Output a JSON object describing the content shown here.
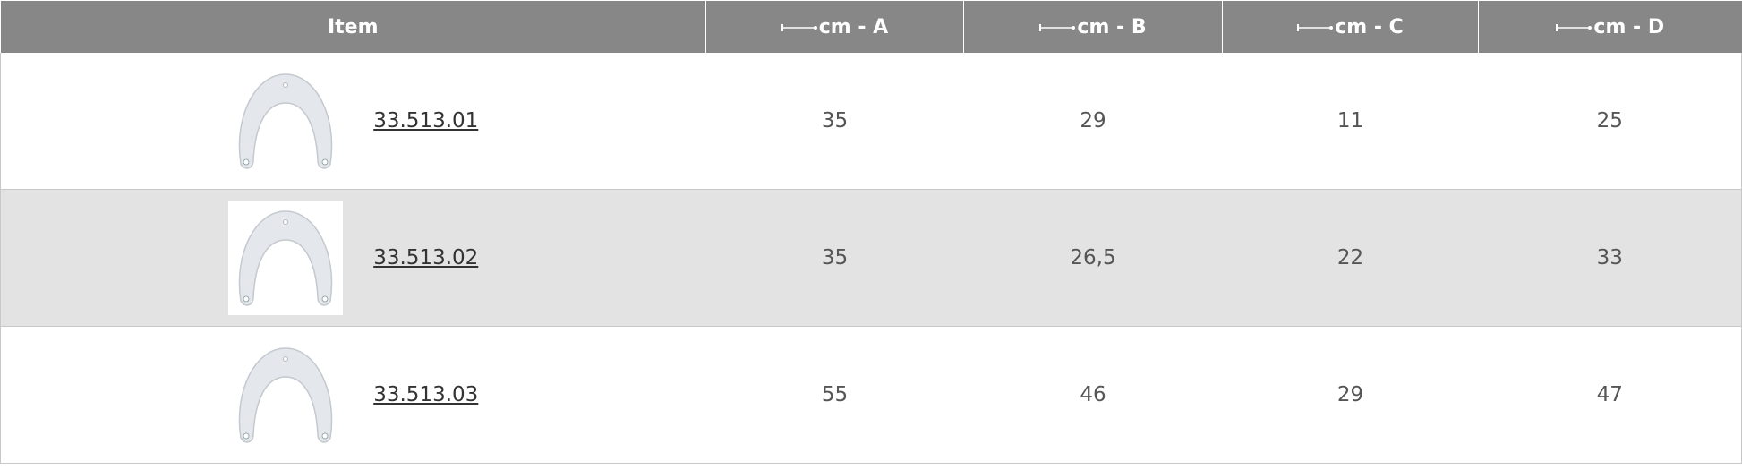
{
  "table": {
    "columns": [
      "Item",
      "cm - A",
      "cm - B",
      "cm - C",
      "cm - D"
    ],
    "rows": [
      [
        "33.513.01",
        "35",
        "29",
        "11",
        "25"
      ],
      [
        "33.513.02",
        "35",
        "26,5",
        "22",
        "33"
      ],
      [
        "33.513.03",
        "55",
        "46",
        "29",
        "47"
      ]
    ]
  }
}
